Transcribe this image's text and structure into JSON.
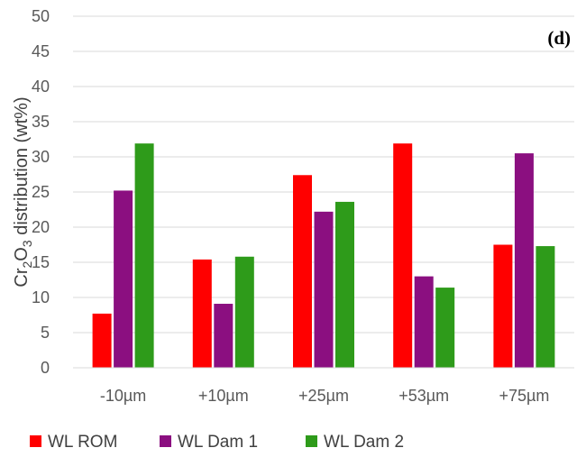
{
  "chart_data": {
    "type": "bar",
    "title": "",
    "panel_label": "(d)",
    "xlabel": "",
    "ylabel": {
      "prefix": "Cr",
      "sub1": "2",
      "mid": "O",
      "sub2": "3",
      "suffix": " distribution (wt%)"
    },
    "ylim": [
      0,
      50
    ],
    "yticks": [
      0,
      5,
      10,
      15,
      20,
      25,
      30,
      35,
      40,
      45,
      50
    ],
    "grid": true,
    "legend_position": "bottom",
    "categories": [
      "-10µm",
      "+10µm",
      "+25µm",
      "+53µm",
      "+75µm"
    ],
    "series": [
      {
        "name": "WL ROM",
        "color": "#ff0000",
        "values": [
          7.7,
          15.4,
          27.4,
          31.9,
          17.5
        ]
      },
      {
        "name": "WL Dam 1",
        "color": "#8b0f80",
        "values": [
          25.2,
          9.1,
          22.2,
          13.0,
          30.5
        ]
      },
      {
        "name": "WL Dam 2",
        "color": "#2e9b1a",
        "values": [
          31.9,
          15.8,
          23.6,
          11.4,
          17.3
        ]
      }
    ]
  }
}
